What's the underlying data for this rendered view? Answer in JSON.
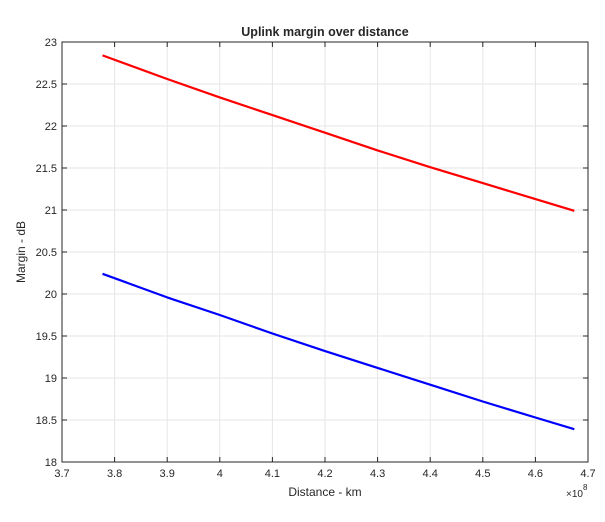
{
  "chart_data": {
    "type": "line",
    "title": "Uplink margin over distance",
    "xlabel": "Distance - km",
    "ylabel": "Margin - dB",
    "x_multiplier_label": "×10",
    "x_multiplier_exponent": "8",
    "xlim": [
      3.7,
      4.7
    ],
    "ylim": [
      18,
      23
    ],
    "xticks": [
      3.7,
      3.8,
      3.9,
      4.0,
      4.1,
      4.2,
      4.3,
      4.4,
      4.5,
      4.6,
      4.7
    ],
    "xtick_labels": [
      "3.7",
      "3.8",
      "3.9",
      "4",
      "4.1",
      "4.2",
      "4.3",
      "4.4",
      "4.5",
      "4.6",
      "4.7"
    ],
    "yticks": [
      18,
      18.5,
      19,
      19.5,
      20,
      20.5,
      21,
      21.5,
      22,
      22.5,
      23
    ],
    "ytick_labels": [
      "18",
      "18.5",
      "19",
      "19.5",
      "20",
      "20.5",
      "21",
      "21.5",
      "22",
      "22.5",
      "23"
    ],
    "grid": true,
    "series": [
      {
        "color": "#ff0000",
        "x": [
          3.777,
          3.9,
          4.0,
          4.1,
          4.2,
          4.3,
          4.4,
          4.5,
          4.6,
          4.674
        ],
        "y": [
          22.84,
          22.56,
          22.34,
          22.13,
          21.92,
          21.71,
          21.51,
          21.32,
          21.13,
          20.99
        ]
      },
      {
        "color": "#0000ff",
        "x": [
          3.777,
          3.9,
          4.0,
          4.1,
          4.2,
          4.3,
          4.4,
          4.5,
          4.6,
          4.674
        ],
        "y": [
          20.24,
          19.96,
          19.75,
          19.53,
          19.32,
          19.12,
          18.92,
          18.72,
          18.53,
          18.39
        ]
      }
    ]
  }
}
